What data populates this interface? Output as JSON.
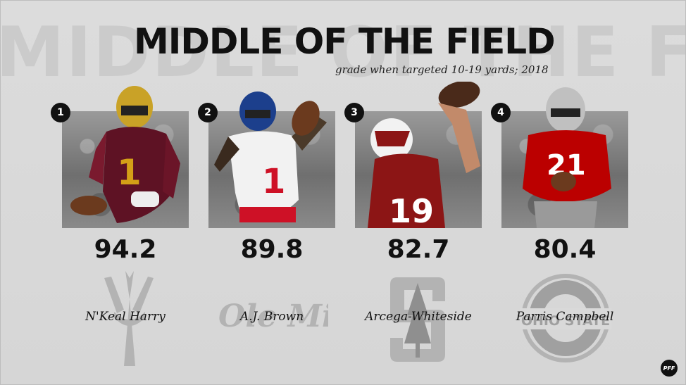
{
  "background_word": "MIDDLE OF THE FIELD",
  "title": "MIDDLE OF THE FIELD",
  "subtitle": "grade when targeted 10-19 yards; 2018",
  "players": [
    {
      "rank": "1",
      "grade": "94.2",
      "name": "N'Keal Harry",
      "school_logo": "arizona-state-pitchfork",
      "jersey_number": "1",
      "jersey_color": "#5e1224",
      "accent_color": "#d4a017"
    },
    {
      "rank": "2",
      "grade": "89.8",
      "name": "A.J. Brown",
      "school_logo": "ole-miss-script",
      "logo_text": "Ole Miss",
      "jersey_number": "1",
      "jersey_color": "#f2f2f2",
      "accent_color": "#ce1126"
    },
    {
      "rank": "3",
      "grade": "82.7",
      "name": "Arcega-Whiteside",
      "school_logo": "stanford-tree-s",
      "jersey_number": "19",
      "jersey_color": "#8c1515",
      "accent_color": "#ffffff"
    },
    {
      "rank": "4",
      "grade": "80.4",
      "name": "Parris Campbell",
      "school_logo": "ohio-state-block-o",
      "logo_text": "OHIO STATE",
      "jersey_number": "21",
      "jersey_color": "#bb0000",
      "accent_color": "#c0c0c0"
    }
  ],
  "brand": {
    "label": "PFF"
  },
  "colors": {
    "background": "#d9d9d9",
    "text": "#111111",
    "logo_gray": "#b3b3b3"
  }
}
